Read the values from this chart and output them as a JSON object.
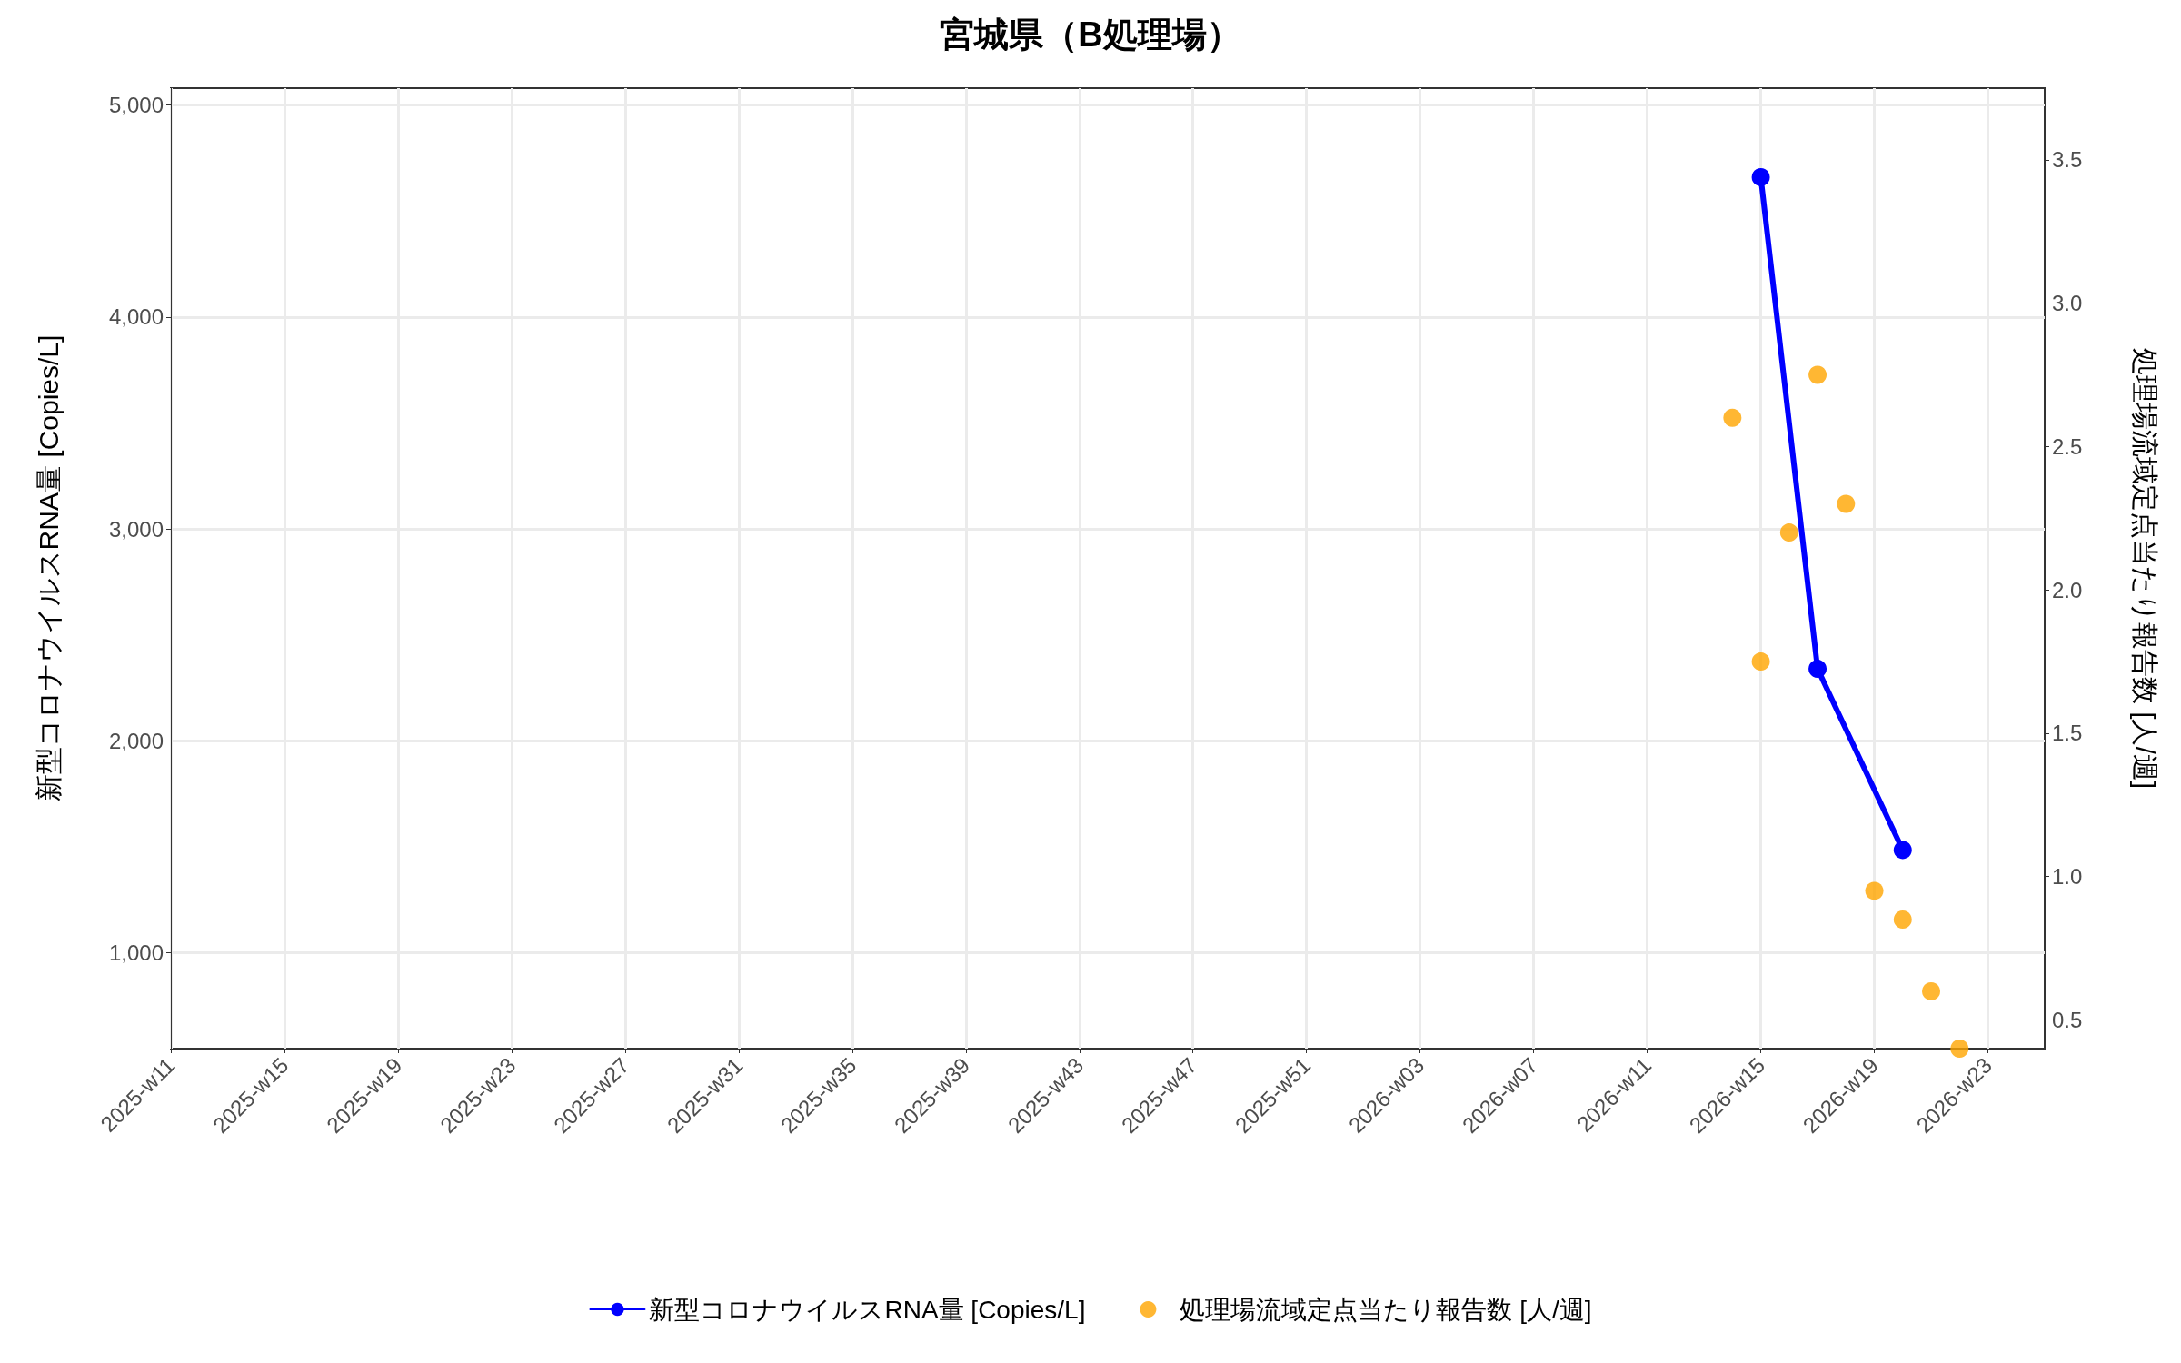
{
  "chart_data": {
    "type": "line",
    "title": "宮城県（B処理場）",
    "ylabel": "新型コロナウイルスRNA量 [Copies/L]",
    "y2label": "処理場流域定点当たり報告数 [人/週]",
    "categories": [
      "2025-w11",
      null,
      null,
      null,
      "2025-w15",
      null,
      null,
      null,
      "2025-w19",
      null,
      null,
      null,
      "2025-w23",
      null,
      null,
      null,
      "2025-w27",
      null,
      null,
      null,
      "2025-w31",
      null,
      null,
      null,
      "2025-w35",
      null,
      null,
      null,
      "2025-w39",
      null,
      null,
      null,
      "2025-w43",
      null,
      null,
      null,
      "2025-w47",
      null,
      null,
      null,
      "2025-w51",
      null,
      null,
      null,
      "2026-w03",
      null,
      null,
      null,
      "2026-w07",
      null,
      null,
      null,
      "2026-w11",
      null,
      null,
      null,
      "2026-w15",
      null,
      null,
      null,
      "2026-w19",
      null,
      null,
      null,
      "2026-w23",
      null,
      null
    ],
    "ylim": [
      548,
      5080
    ],
    "yticks": [
      {
        "value": 1000,
        "label": "1,000"
      },
      {
        "value": 2000,
        "label": "2,000"
      },
      {
        "value": 3000,
        "label": "3,000"
      },
      {
        "value": 4000,
        "label": "4,000"
      },
      {
        "value": 5000,
        "label": "5,000"
      }
    ],
    "y2lim": [
      0.4,
      3.75
    ],
    "y2ticks": [
      {
        "value": 0.5,
        "label": "0.5"
      },
      {
        "value": 1,
        "label": "1.0"
      },
      {
        "value": 1.5,
        "label": "1.5"
      },
      {
        "value": 2,
        "label": "2.0"
      },
      {
        "value": 2.5,
        "label": "2.5"
      },
      {
        "value": 3,
        "label": "3.0"
      },
      {
        "value": 3.5,
        "label": "3.5"
      }
    ],
    "series": [
      {
        "name": "新型コロナウイルスRNA量 [Copies/L]",
        "color": "#0000ff",
        "marker": "circle",
        "line_style": "solid",
        "values": [
          null,
          null,
          null,
          null,
          null,
          null,
          null,
          null,
          null,
          null,
          null,
          null,
          null,
          null,
          null,
          null,
          null,
          null,
          null,
          null,
          null,
          null,
          null,
          null,
          null,
          null,
          null,
          null,
          null,
          null,
          null,
          null,
          null,
          null,
          null,
          null,
          null,
          null,
          null,
          null,
          null,
          null,
          null,
          null,
          null,
          null,
          null,
          null,
          null,
          null,
          null,
          null,
          null,
          null,
          null,
          null,
          4660,
          null,
          2340,
          null,
          null,
          1485,
          null,
          null,
          null,
          null,
          null
        ]
      },
      {
        "name": "処理場流域定点当たり報告数 [人/週]",
        "type": "scatter",
        "axis": "y2",
        "color": "#ffa500",
        "marker": "circle",
        "values": [
          null,
          null,
          null,
          null,
          null,
          null,
          null,
          null,
          null,
          null,
          null,
          null,
          null,
          null,
          null,
          null,
          null,
          null,
          null,
          null,
          null,
          null,
          null,
          null,
          null,
          null,
          null,
          null,
          null,
          null,
          null,
          null,
          null,
          null,
          null,
          null,
          null,
          null,
          null,
          null,
          null,
          null,
          null,
          null,
          null,
          null,
          null,
          null,
          null,
          null,
          null,
          null,
          null,
          null,
          null,
          2.6,
          1.75,
          2.2,
          2.75,
          2.3,
          0.95,
          0.85,
          0.6,
          0.4,
          null,
          null,
          null
        ]
      }
    ],
    "grid": true,
    "legend": "bottom"
  }
}
